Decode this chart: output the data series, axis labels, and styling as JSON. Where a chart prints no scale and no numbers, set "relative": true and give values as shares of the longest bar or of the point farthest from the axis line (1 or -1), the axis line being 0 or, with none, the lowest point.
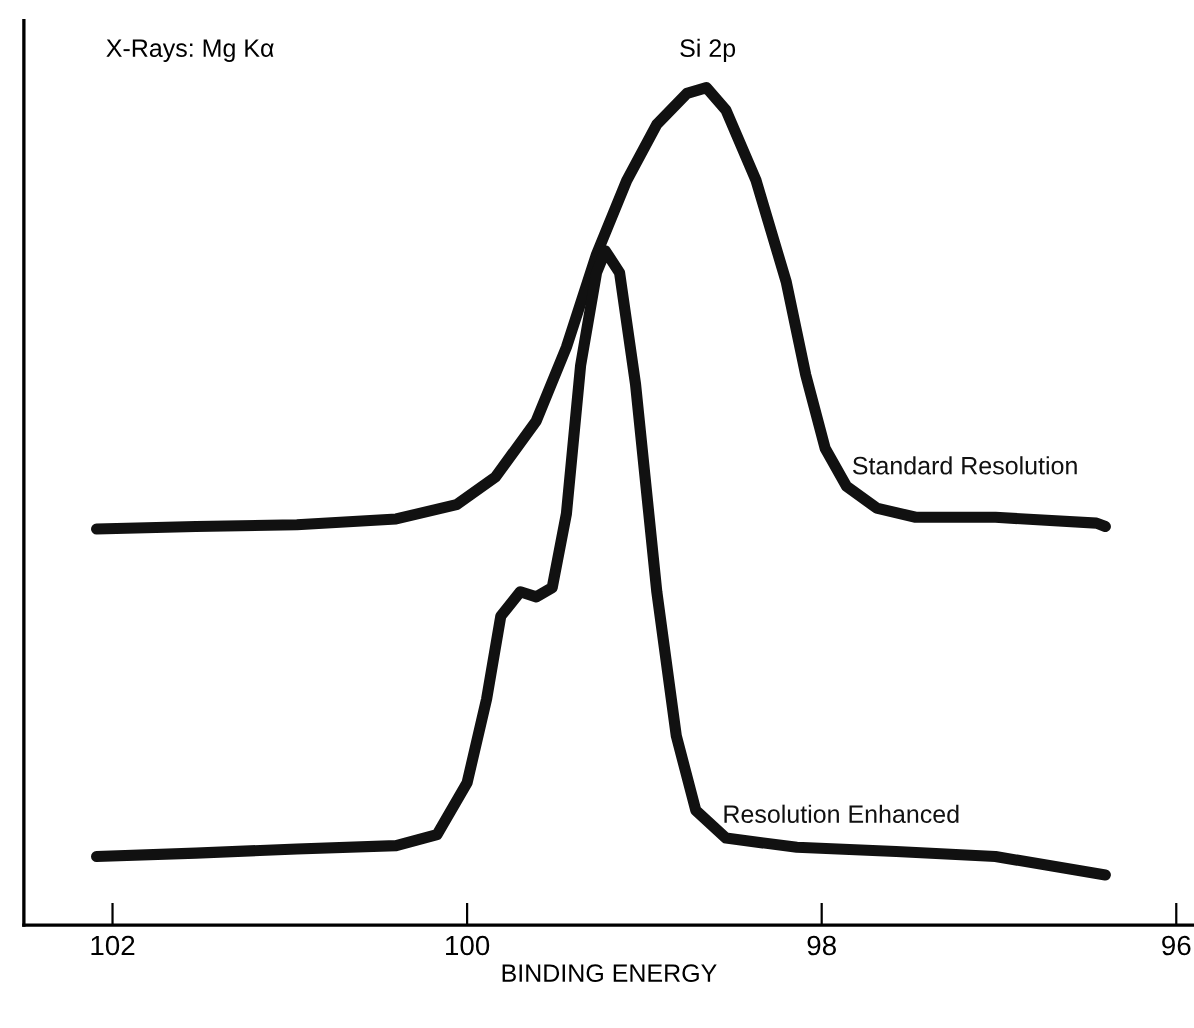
{
  "chart_data": {
    "type": "line",
    "relative": true,
    "xlabel": "BINDING ENERGY",
    "xlim": [
      102.5,
      95.9
    ],
    "xticks": [
      102,
      100,
      98,
      96
    ],
    "grid": false,
    "legend": false,
    "marker": "none",
    "line_style": "solid",
    "annotations": [
      "X-Rays: Mg Kα",
      "Si 2p"
    ],
    "series": [
      {
        "name": "Standard Resolution",
        "color": "#111111",
        "x": [
          102.09,
          101.53,
          100.96,
          100.4,
          100.06,
          99.84,
          99.61,
          99.44,
          99.27,
          99.1,
          98.93,
          98.76,
          98.65,
          98.54,
          98.37,
          98.2,
          98.09,
          97.98,
          97.86,
          97.69,
          97.47,
          97.02,
          96.45,
          96.4
        ],
        "values": [
          0.473,
          0.476,
          0.478,
          0.485,
          0.502,
          0.535,
          0.602,
          0.69,
          0.801,
          0.889,
          0.956,
          0.993,
          1.0,
          0.973,
          0.889,
          0.768,
          0.657,
          0.569,
          0.524,
          0.498,
          0.487,
          0.487,
          0.48,
          0.476
        ]
      },
      {
        "name": "Resolution Enhanced",
        "color": "#111111",
        "x": [
          102.09,
          101.53,
          100.96,
          100.4,
          100.17,
          100.0,
          99.89,
          99.81,
          99.7,
          99.61,
          99.52,
          99.44,
          99.36,
          99.27,
          99.22,
          99.14,
          99.05,
          98.93,
          98.82,
          98.71,
          98.54,
          98.14,
          97.58,
          97.02,
          96.4
        ],
        "values": [
          0.082,
          0.086,
          0.091,
          0.095,
          0.108,
          0.17,
          0.27,
          0.369,
          0.398,
          0.392,
          0.403,
          0.491,
          0.668,
          0.779,
          0.805,
          0.779,
          0.646,
          0.398,
          0.226,
          0.137,
          0.104,
          0.093,
          0.088,
          0.082,
          0.06
        ]
      }
    ]
  }
}
